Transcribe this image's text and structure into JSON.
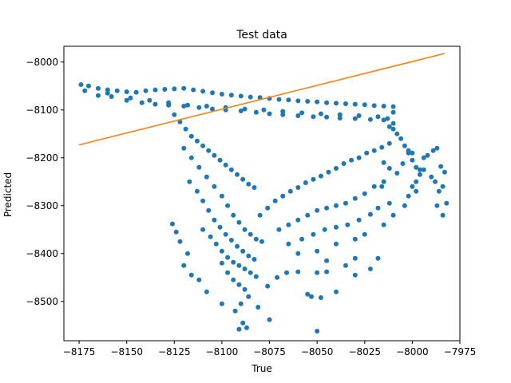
{
  "chart_data": {
    "type": "scatter",
    "title": "Test data",
    "xlabel": "True",
    "ylabel": "Predicted",
    "xlim": [
      -8183,
      -7975
    ],
    "ylim": [
      -8582,
      -7967
    ],
    "x_ticks": [
      -8175,
      -8150,
      -8125,
      -8100,
      -8075,
      -8050,
      -8025,
      -8000,
      -7975
    ],
    "x_tick_labels": [
      "−8175",
      "−8150",
      "−8125",
      "−8100",
      "−8075",
      "−8050",
      "−8025",
      "−8000",
      "−7975"
    ],
    "y_ticks": [
      -8500,
      -8400,
      -8300,
      -8200,
      -8100,
      -8000
    ],
    "y_tick_labels": [
      "−8500",
      "−8400",
      "−8300",
      "−8200",
      "−8100",
      "−8000"
    ],
    "grid": false,
    "colors": {
      "points": "#1f77b4",
      "fit_line": "#ff7f0e"
    },
    "series": [
      {
        "kind": "points",
        "color": "#1f77b4",
        "points": [
          [
            -8174,
            -8047
          ],
          [
            -8170,
            -8050
          ],
          [
            -8165,
            -8055
          ],
          [
            -8160,
            -8058
          ],
          [
            -8155,
            -8060
          ],
          [
            -8150,
            -8062
          ],
          [
            -8145,
            -8063
          ],
          [
            -8140,
            -8060
          ],
          [
            -8135,
            -8058
          ],
          [
            -8130,
            -8057
          ],
          [
            -8125,
            -8056
          ],
          [
            -8120,
            -8055
          ],
          [
            -8115,
            -8058
          ],
          [
            -8110,
            -8061
          ],
          [
            -8105,
            -8064
          ],
          [
            -8100,
            -8067
          ],
          [
            -8095,
            -8069
          ],
          [
            -8090,
            -8071
          ],
          [
            -8085,
            -8073
          ],
          [
            -8080,
            -8074
          ],
          [
            -8075,
            -8076
          ],
          [
            -8070,
            -8078
          ],
          [
            -8065,
            -8079
          ],
          [
            -8060,
            -8081
          ],
          [
            -8055,
            -8082
          ],
          [
            -8050,
            -8083
          ],
          [
            -8045,
            -8085
          ],
          [
            -8040,
            -8086
          ],
          [
            -8035,
            -8087
          ],
          [
            -8030,
            -8088
          ],
          [
            -8025,
            -8089
          ],
          [
            -8020,
            -8091
          ],
          [
            -8015,
            -8092
          ],
          [
            -8010,
            -8093
          ],
          [
            -8172,
            -8060
          ],
          [
            -8165,
            -8070
          ],
          [
            -8158,
            -8072
          ],
          [
            -8150,
            -8080
          ],
          [
            -8142,
            -8085
          ],
          [
            -8135,
            -8088
          ],
          [
            -8128,
            -8090
          ],
          [
            -8120,
            -8092
          ],
          [
            -8112,
            -8095
          ],
          [
            -8105,
            -8098
          ],
          [
            -8098,
            -8100
          ],
          [
            -8090,
            -8102
          ],
          [
            -8082,
            -8105
          ],
          [
            -8075,
            -8108
          ],
          [
            -8068,
            -8110
          ],
          [
            -8060,
            -8112
          ],
          [
            -8052,
            -8114
          ],
          [
            -8045,
            -8115
          ],
          [
            -8038,
            -8117
          ],
          [
            -8030,
            -8118
          ],
          [
            -8022,
            -8120
          ],
          [
            -8015,
            -8121
          ],
          [
            -8010,
            -8105
          ],
          [
            -8160,
            -8065
          ],
          [
            -8148,
            -8075
          ],
          [
            -8138,
            -8080
          ],
          [
            -8128,
            -8085
          ],
          [
            -8118,
            -8090
          ],
          [
            -8108,
            -8092
          ],
          [
            -8098,
            -8095
          ],
          [
            -8088,
            -8098
          ],
          [
            -8078,
            -8100
          ],
          [
            -8068,
            -8103
          ],
          [
            -8058,
            -8106
          ],
          [
            -8048,
            -8108
          ],
          [
            -8038,
            -8110
          ],
          [
            -8028,
            -8112
          ],
          [
            -8018,
            -8114
          ],
          [
            -8125,
            -8110
          ],
          [
            -8122,
            -8125
          ],
          [
            -8119,
            -8140
          ],
          [
            -8116,
            -8155
          ],
          [
            -8113,
            -8165
          ],
          [
            -8110,
            -8175
          ],
          [
            -8107,
            -8185
          ],
          [
            -8104,
            -8195
          ],
          [
            -8101,
            -8205
          ],
          [
            -8098,
            -8215
          ],
          [
            -8095,
            -8225
          ],
          [
            -8092,
            -8235
          ],
          [
            -8089,
            -8245
          ],
          [
            -8086,
            -8255
          ],
          [
            -8083,
            -8262
          ],
          [
            -8120,
            -8180
          ],
          [
            -8116,
            -8200
          ],
          [
            -8112,
            -8220
          ],
          [
            -8108,
            -8240
          ],
          [
            -8104,
            -8260
          ],
          [
            -8100,
            -8280
          ],
          [
            -8097,
            -8300
          ],
          [
            -8094,
            -8320
          ],
          [
            -8091,
            -8335
          ],
          [
            -8088,
            -8350
          ],
          [
            -8085,
            -8360
          ],
          [
            -8082,
            -8370
          ],
          [
            -8079,
            -8375
          ],
          [
            -8117,
            -8250
          ],
          [
            -8113,
            -8270
          ],
          [
            -8110,
            -8290
          ],
          [
            -8107,
            -8310
          ],
          [
            -8104,
            -8330
          ],
          [
            -8101,
            -8345
          ],
          [
            -8098,
            -8360
          ],
          [
            -8095,
            -8372
          ],
          [
            -8092,
            -8385
          ],
          [
            -8089,
            -8395
          ],
          [
            -8086,
            -8405
          ],
          [
            -8083,
            -8412
          ],
          [
            -8110,
            -8350
          ],
          [
            -8106,
            -8365
          ],
          [
            -8103,
            -8380
          ],
          [
            -8100,
            -8395
          ],
          [
            -8097,
            -8408
          ],
          [
            -8094,
            -8418
          ],
          [
            -8091,
            -8425
          ],
          [
            -8088,
            -8432
          ],
          [
            -8085,
            -8440
          ],
          [
            -8082,
            -8448
          ],
          [
            -8100,
            -8420
          ],
          [
            -8097,
            -8440
          ],
          [
            -8094,
            -8455
          ],
          [
            -8091,
            -8465
          ],
          [
            -8088,
            -8475
          ],
          [
            -8086,
            -8490
          ],
          [
            -8090,
            -8505
          ],
          [
            -8093,
            -8520
          ],
          [
            -8089,
            -8545
          ],
          [
            -8091,
            -8558
          ],
          [
            -8087,
            -8555
          ],
          [
            -8081,
            -8512
          ],
          [
            -8076,
            -8468
          ],
          [
            -8071,
            -8450
          ],
          [
            -8066,
            -8440
          ],
          [
            -8060,
            -8438
          ],
          [
            -8050,
            -8440
          ],
          [
            -8045,
            -8438
          ],
          [
            -8055,
            -8485
          ],
          [
            -8053,
            -8490
          ],
          [
            -8048,
            -8492
          ],
          [
            -8040,
            -8480
          ],
          [
            -8050,
            -8562
          ],
          [
            -8075,
            -8538
          ],
          [
            -8100,
            -8505
          ],
          [
            -8108,
            -8480
          ],
          [
            -8112,
            -8455
          ],
          [
            -8116,
            -8445
          ],
          [
            -8120,
            -8425
          ],
          [
            -8118,
            -8400
          ],
          [
            -8122,
            -8375
          ],
          [
            -8124,
            -8355
          ],
          [
            -8126,
            -8338
          ],
          [
            -8080,
            -8320
          ],
          [
            -8076,
            -8305
          ],
          [
            -8072,
            -8290
          ],
          [
            -8068,
            -8280
          ],
          [
            -8064,
            -8270
          ],
          [
            -8060,
            -8262
          ],
          [
            -8056,
            -8252
          ],
          [
            -8052,
            -8245
          ],
          [
            -8048,
            -8238
          ],
          [
            -8044,
            -8230
          ],
          [
            -8040,
            -8222
          ],
          [
            -8036,
            -8212
          ],
          [
            -8032,
            -8205
          ],
          [
            -8028,
            -8200
          ],
          [
            -8024,
            -8190
          ],
          [
            -8020,
            -8185
          ],
          [
            -8016,
            -8178
          ],
          [
            -8012,
            -8170
          ],
          [
            -8070,
            -8350
          ],
          [
            -8065,
            -8340
          ],
          [
            -8060,
            -8330
          ],
          [
            -8055,
            -8320
          ],
          [
            -8050,
            -8310
          ],
          [
            -8045,
            -8305
          ],
          [
            -8040,
            -8300
          ],
          [
            -8035,
            -8295
          ],
          [
            -8030,
            -8285
          ],
          [
            -8025,
            -8275
          ],
          [
            -8020,
            -8260
          ],
          [
            -8015,
            -8250
          ],
          [
            -8065,
            -8380
          ],
          [
            -8058,
            -8370
          ],
          [
            -8052,
            -8360
          ],
          [
            -8046,
            -8350
          ],
          [
            -8040,
            -8345
          ],
          [
            -8034,
            -8340
          ],
          [
            -8028,
            -8330
          ],
          [
            -8022,
            -8318
          ],
          [
            -8018,
            -8305
          ],
          [
            -8012,
            -8295
          ],
          [
            -8060,
            -8400
          ],
          [
            -8050,
            -8395
          ],
          [
            -8040,
            -8380
          ],
          [
            -8030,
            -8370
          ],
          [
            -8025,
            -8360
          ],
          [
            -8015,
            -8340
          ],
          [
            -8010,
            -8320
          ],
          [
            -8030,
            -8410
          ],
          [
            -8022,
            -8432
          ],
          [
            -8018,
            -8410
          ],
          [
            -8030,
            -8445
          ],
          [
            -8035,
            -8425
          ],
          [
            -8045,
            -8415
          ],
          [
            -8010,
            -8140
          ],
          [
            -8008,
            -8150
          ],
          [
            -8006,
            -8160
          ],
          [
            -8004,
            -8175
          ],
          [
            -8002,
            -8190
          ],
          [
            -8000,
            -8205
          ],
          [
            -7998,
            -8220
          ],
          [
            -7996,
            -8225
          ],
          [
            -7994,
            -8225
          ],
          [
            -8005,
            -8212
          ],
          [
            -8015,
            -8210
          ],
          [
            -8012,
            -8222
          ],
          [
            -8008,
            -8232
          ],
          [
            -8016,
            -8260
          ],
          [
            -8004,
            -8300
          ],
          [
            -8002,
            -8280
          ],
          [
            -8000,
            -8260
          ],
          [
            -7998,
            -8250
          ],
          [
            -7996,
            -8235
          ],
          [
            -7992,
            -8195
          ],
          [
            -7990,
            -8240
          ],
          [
            -7988,
            -8250
          ],
          [
            -7986,
            -8270
          ],
          [
            -7989,
            -8185
          ],
          [
            -7987,
            -8180
          ],
          [
            -7985,
            -8218
          ],
          [
            -7983,
            -8230
          ],
          [
            -7984,
            -8260
          ],
          [
            -7982,
            -8295
          ],
          [
            -7987,
            -8300
          ],
          [
            -7984,
            -8320
          ],
          [
            -8002,
            -8185
          ],
          [
            -8000,
            -8190
          ],
          [
            -7998,
            -8270
          ],
          [
            -7994,
            -8200
          ],
          [
            -8012,
            -8135
          ],
          [
            -8010,
            -8128
          ],
          [
            -8013,
            -8118
          ]
        ]
      },
      {
        "kind": "line",
        "color": "#ff7f0e",
        "points": [
          [
            -8175,
            -8173
          ],
          [
            -7983,
            -7982
          ]
        ]
      }
    ]
  }
}
